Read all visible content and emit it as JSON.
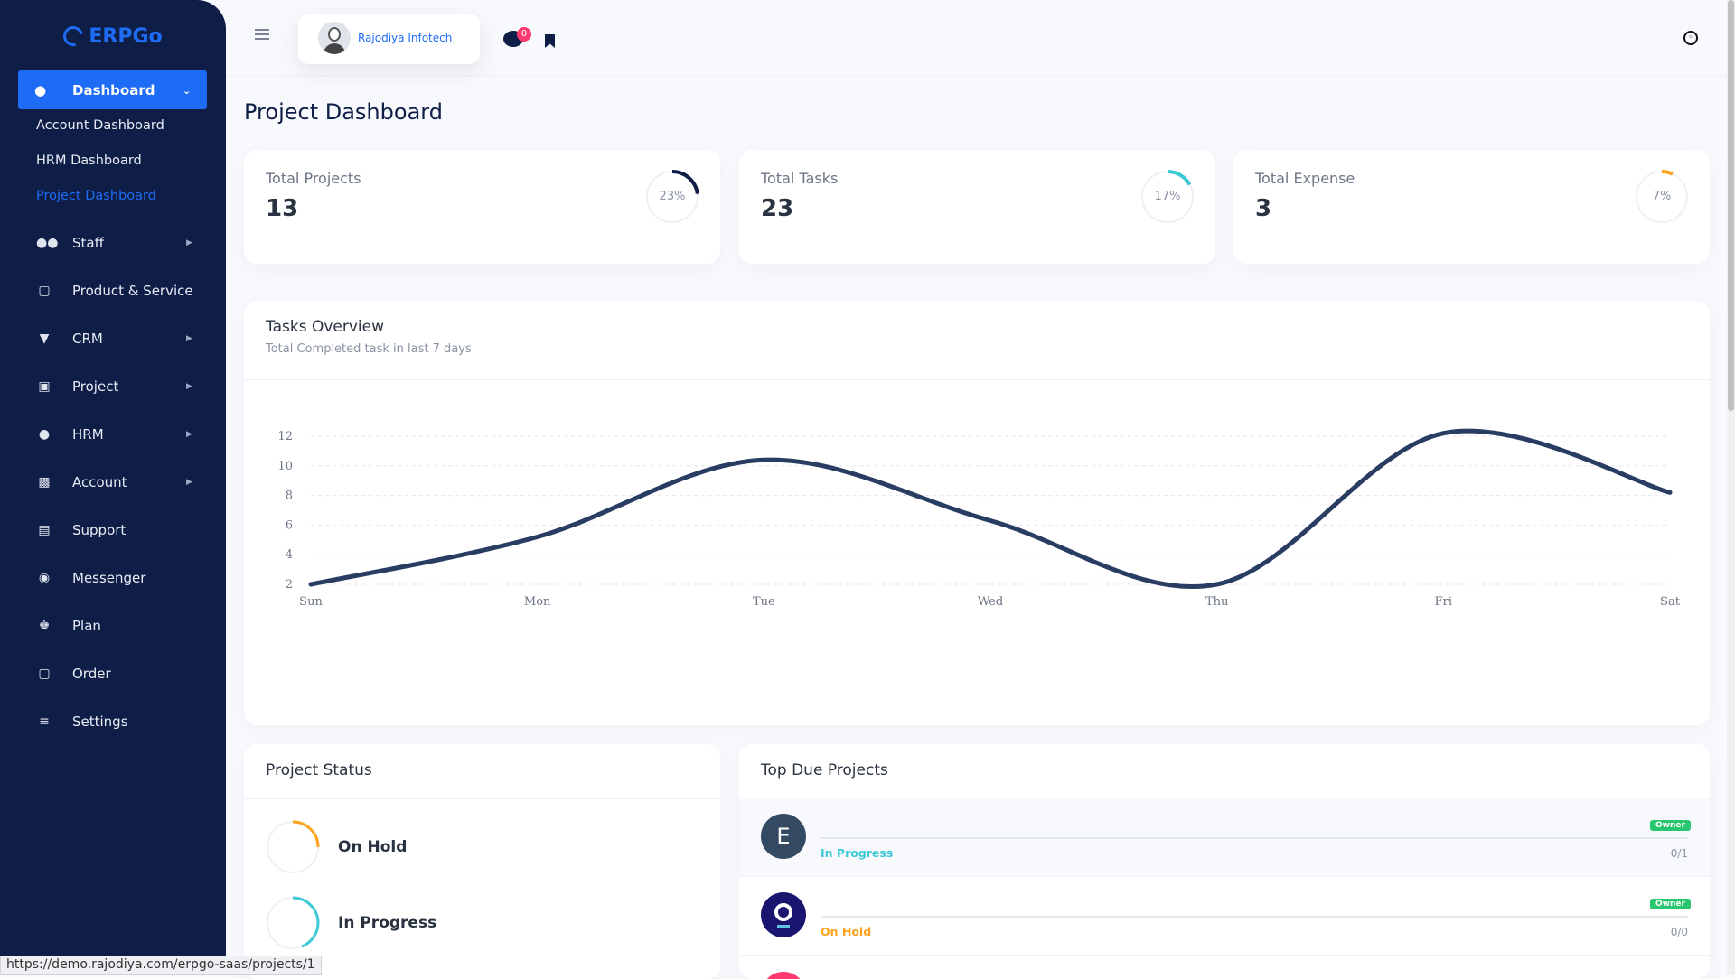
{
  "brand": {
    "name": "ERPGo"
  },
  "sidebar": {
    "dashboard": {
      "label": "Dashboard"
    },
    "subitems": [
      {
        "label": "Account Dashboard"
      },
      {
        "label": "HRM Dashboard"
      },
      {
        "label": "Project Dashboard"
      }
    ],
    "items": [
      {
        "label": "Staff",
        "icon": "users-icon"
      },
      {
        "label": "Product & Service",
        "icon": "cart-icon"
      },
      {
        "label": "CRM",
        "icon": "filter-icon"
      },
      {
        "label": "Project",
        "icon": "project-icon"
      },
      {
        "label": "HRM",
        "icon": "user-icon"
      },
      {
        "label": "Account",
        "icon": "briefcase-icon"
      },
      {
        "label": "Support",
        "icon": "support-icon"
      },
      {
        "label": "Messenger",
        "icon": "chat-icon"
      },
      {
        "label": "Plan",
        "icon": "trophy-icon"
      },
      {
        "label": "Order",
        "icon": "order-cart-icon"
      },
      {
        "label": "Settings",
        "icon": "sliders-icon"
      }
    ]
  },
  "header": {
    "user_name": "Rajodiya Infotech",
    "message_count": "0"
  },
  "page": {
    "title": "Project Dashboard"
  },
  "stats": [
    {
      "label": "Total Projects",
      "value": "13",
      "percent_text": "23%",
      "percent": 23,
      "color": "#0f1e47"
    },
    {
      "label": "Total Tasks",
      "value": "23",
      "percent_text": "17%",
      "percent": 17,
      "color": "#3ec9d6"
    },
    {
      "label": "Total Expense",
      "value": "3",
      "percent_text": "7%",
      "percent": 7,
      "color": "#ffa21d"
    }
  ],
  "tasks_overview": {
    "title": "Tasks Overview",
    "subtitle": "Total Completed task in last 7 days"
  },
  "chart_data": {
    "type": "line",
    "categories": [
      "Sun",
      "Mon",
      "Tue",
      "Wed",
      "Thu",
      "Fri",
      "Sat"
    ],
    "series": [
      {
        "values": [
          2,
          5.2,
          10.4,
          6.3,
          2,
          12.2,
          8.2
        ]
      }
    ],
    "yticks": [
      "2",
      "4",
      "6",
      "8",
      "10",
      "12"
    ],
    "ylim": [
      2,
      12
    ],
    "color": "#293d63",
    "grid": true
  },
  "project_status": {
    "title": "Project Status",
    "items": [
      {
        "label": "On Hold",
        "color": "#ffa21d"
      },
      {
        "label": "In Progress",
        "color": "#3ec9d6"
      }
    ]
  },
  "top_due": {
    "title": "Top Due Projects",
    "rows": [
      {
        "initial": "E",
        "badge": "Owner",
        "status": "In Progress",
        "status_color": "#3ec9d6",
        "count": "0/1",
        "avatar_color": "#344a62"
      },
      {
        "initial": "O",
        "badge": "Owner",
        "status": "On Hold",
        "status_color": "#ffa21d",
        "count": "0/0",
        "avatar_color": "#1a1670"
      }
    ]
  },
  "status_bar": {
    "url": "https://demo.rajodiya.com/erpgo-saas/projects/1"
  }
}
